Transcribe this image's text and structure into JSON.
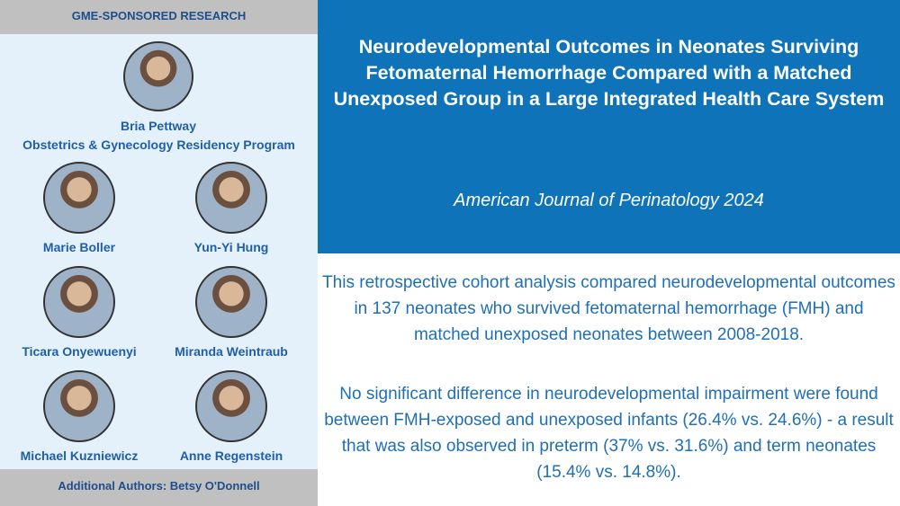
{
  "header": {
    "title": "GME-SPONSORED RESEARCH"
  },
  "lead_author": {
    "name": "Bria Pettway",
    "program": "Obstetrics & Gynecology Residency Program"
  },
  "authors": [
    "Marie Boller",
    "Yun-Yi Hung",
    "Ticara Onyewuenyi",
    "Miranda Weintraub",
    "Michael Kuzniewicz",
    "Anne Regenstein"
  ],
  "footer": {
    "additional_authors": "Additional Authors:  Betsy O'Donnell"
  },
  "article": {
    "title": "Neurodevelopmental Outcomes in Neonates Surviving Fetomaternal Hemorrhage Compared with a Matched Unexposed Group in a Large Integrated Health Care System",
    "journal": "American Journal of Perinatology 2024"
  },
  "summary": [
    "This retrospective cohort analysis compared neurodevelopmental outcomes in 137 neonates who survived fetomaternal hemorrhage (FMH) and matched unexposed neonates between 2008-2018.",
    "No significant difference in neurodevelopmental impairment were found between FMH-exposed and unexposed infants (26.4% vs. 24.6%) - a result that was also observed in preterm (37% vs. 31.6%) and term neonates (15.4% vs. 14.8%)."
  ]
}
